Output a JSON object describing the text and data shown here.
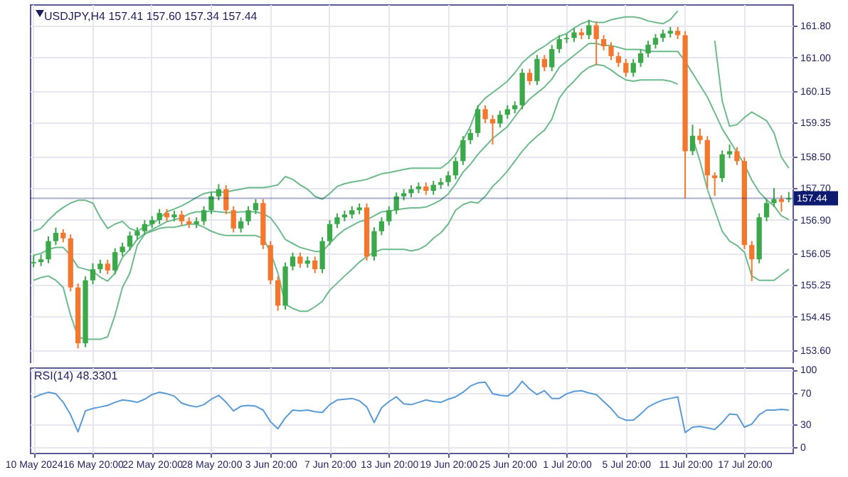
{
  "chart_data": [
    {
      "type": "candlestick",
      "title": "USDJPY,H4  157.41 157.60 157.34 157.44",
      "ohlc": [
        [
          155.8,
          156.0,
          155.7,
          155.83
        ],
        [
          155.83,
          156.02,
          155.73,
          155.9
        ],
        [
          155.9,
          156.48,
          155.8,
          156.36
        ],
        [
          156.36,
          156.7,
          156.26,
          156.57
        ],
        [
          156.57,
          156.66,
          156.33,
          156.43
        ],
        [
          156.43,
          156.53,
          155.09,
          155.19
        ],
        [
          155.19,
          155.29,
          153.65,
          153.78
        ],
        [
          153.78,
          155.47,
          153.68,
          155.37
        ],
        [
          155.37,
          155.8,
          155.27,
          155.65
        ],
        [
          155.65,
          155.89,
          155.55,
          155.79
        ],
        [
          155.79,
          155.89,
          155.52,
          155.62
        ],
        [
          155.62,
          156.18,
          155.52,
          156.08
        ],
        [
          156.08,
          156.32,
          155.98,
          156.22
        ],
        [
          156.22,
          156.6,
          156.12,
          156.5
        ],
        [
          156.5,
          156.71,
          156.4,
          156.61
        ],
        [
          156.61,
          156.89,
          156.51,
          156.79
        ],
        [
          156.79,
          156.99,
          156.69,
          156.89
        ],
        [
          156.89,
          157.17,
          156.79,
          157.07
        ],
        [
          157.07,
          157.17,
          156.86,
          156.96
        ],
        [
          156.96,
          157.13,
          156.86,
          157.03
        ],
        [
          157.03,
          157.13,
          156.76,
          156.86
        ],
        [
          156.86,
          156.96,
          156.69,
          156.79
        ],
        [
          156.79,
          156.96,
          156.69,
          156.86
        ],
        [
          156.86,
          157.24,
          156.76,
          157.14
        ],
        [
          157.14,
          157.59,
          157.04,
          157.49
        ],
        [
          157.49,
          157.8,
          157.39,
          157.67
        ],
        [
          157.67,
          157.77,
          157.04,
          157.14
        ],
        [
          157.14,
          157.24,
          156.58,
          156.68
        ],
        [
          156.68,
          156.96,
          156.58,
          156.86
        ],
        [
          156.86,
          157.24,
          156.76,
          157.14
        ],
        [
          157.14,
          157.42,
          157.04,
          157.32
        ],
        [
          157.32,
          157.42,
          156.16,
          156.26
        ],
        [
          156.26,
          156.36,
          155.27,
          155.37
        ],
        [
          155.37,
          155.47,
          154.6,
          154.73
        ],
        [
          154.73,
          155.82,
          154.63,
          155.72
        ],
        [
          155.72,
          156.07,
          155.62,
          155.97
        ],
        [
          155.97,
          156.07,
          155.69,
          155.79
        ],
        [
          155.79,
          155.97,
          155.69,
          155.87
        ],
        [
          155.87,
          155.97,
          155.55,
          155.65
        ],
        [
          155.65,
          156.46,
          155.55,
          156.36
        ],
        [
          156.36,
          156.89,
          156.26,
          156.79
        ],
        [
          156.79,
          157.06,
          156.69,
          156.96
        ],
        [
          156.96,
          157.13,
          156.86,
          157.03
        ],
        [
          157.03,
          157.24,
          156.93,
          157.14
        ],
        [
          157.14,
          157.31,
          157.04,
          157.21
        ],
        [
          157.21,
          157.31,
          155.87,
          155.97
        ],
        [
          155.97,
          156.71,
          155.87,
          156.61
        ],
        [
          156.61,
          156.96,
          156.51,
          156.86
        ],
        [
          156.86,
          157.24,
          156.76,
          157.14
        ],
        [
          157.14,
          157.59,
          157.04,
          157.49
        ],
        [
          157.49,
          157.67,
          157.39,
          157.57
        ],
        [
          157.57,
          157.77,
          157.47,
          157.67
        ],
        [
          157.67,
          157.84,
          157.57,
          157.74
        ],
        [
          157.74,
          157.84,
          157.53,
          157.63
        ],
        [
          157.63,
          157.88,
          157.53,
          157.78
        ],
        [
          157.78,
          157.95,
          157.68,
          157.85
        ],
        [
          157.85,
          158.12,
          157.75,
          158.02
        ],
        [
          158.02,
          158.48,
          157.92,
          158.38
        ],
        [
          158.38,
          159.01,
          158.28,
          158.91
        ],
        [
          158.91,
          159.19,
          158.81,
          159.09
        ],
        [
          159.09,
          159.79,
          158.99,
          159.69
        ],
        [
          159.69,
          159.79,
          159.34,
          159.44
        ],
        [
          159.44,
          159.54,
          158.8,
          159.33
        ],
        [
          159.33,
          159.65,
          159.23,
          159.55
        ],
        [
          159.55,
          159.79,
          159.45,
          159.69
        ],
        [
          159.69,
          159.89,
          159.59,
          159.79
        ],
        [
          159.79,
          160.71,
          159.69,
          160.61
        ],
        [
          160.61,
          160.71,
          160.3,
          160.4
        ],
        [
          160.4,
          161.06,
          160.3,
          160.96
        ],
        [
          160.96,
          161.06,
          160.65,
          160.75
        ],
        [
          160.75,
          161.31,
          160.65,
          161.21
        ],
        [
          161.21,
          161.56,
          161.11,
          161.46
        ],
        [
          161.46,
          161.59,
          161.36,
          161.49
        ],
        [
          161.49,
          161.73,
          161.39,
          161.63
        ],
        [
          161.63,
          161.73,
          161.46,
          161.56
        ],
        [
          161.56,
          161.95,
          161.46,
          161.81
        ],
        [
          161.81,
          161.91,
          160.8,
          161.46
        ],
        [
          161.46,
          161.56,
          161.18,
          161.28
        ],
        [
          161.28,
          161.38,
          160.93,
          161.03
        ],
        [
          161.03,
          161.13,
          160.76,
          160.86
        ],
        [
          160.86,
          160.96,
          160.51,
          160.61
        ],
        [
          160.61,
          160.96,
          160.51,
          160.86
        ],
        [
          160.86,
          161.2,
          160.76,
          161.1
        ],
        [
          161.1,
          161.42,
          161.0,
          161.32
        ],
        [
          161.32,
          161.59,
          161.22,
          161.49
        ],
        [
          161.49,
          161.7,
          161.39,
          161.6
        ],
        [
          161.6,
          161.77,
          161.5,
          161.67
        ],
        [
          161.67,
          161.77,
          161.46,
          161.56
        ],
        [
          161.56,
          161.66,
          157.45,
          158.63
        ],
        [
          158.63,
          159.3,
          158.53,
          159.02
        ],
        [
          159.02,
          159.2,
          158.81,
          158.91
        ],
        [
          158.91,
          159.01,
          157.7,
          158.02
        ],
        [
          158.02,
          158.1,
          157.5,
          157.95
        ],
        [
          157.95,
          158.65,
          157.85,
          158.55
        ],
        [
          158.55,
          158.8,
          158.45,
          158.63
        ],
        [
          158.63,
          158.73,
          158.28,
          158.38
        ],
        [
          158.38,
          158.48,
          156.16,
          156.26
        ],
        [
          156.26,
          156.36,
          155.35,
          155.9
        ],
        [
          155.9,
          157.06,
          155.8,
          156.96
        ],
        [
          156.96,
          157.42,
          156.86,
          157.32
        ],
        [
          157.32,
          157.7,
          157.22,
          157.42
        ],
        [
          157.42,
          157.52,
          157.1,
          157.35
        ],
        [
          157.41,
          157.6,
          157.34,
          157.44
        ]
      ],
      "colors": [
        "#3ba84a",
        "#3ba84a",
        "#3ba84a",
        "#3ba84a",
        "#f4772e",
        "#f4772e",
        "#f4772e",
        "#3ba84a",
        "#3ba84a",
        "#3ba84a",
        "#f4772e",
        "#3ba84a",
        "#3ba84a",
        "#3ba84a",
        "#3ba84a",
        "#3ba84a",
        "#3ba84a",
        "#3ba84a",
        "#f4772e",
        "#3ba84a",
        "#f4772e",
        "#f4772e",
        "#3ba84a",
        "#3ba84a",
        "#3ba84a",
        "#3ba84a",
        "#f4772e",
        "#f4772e",
        "#3ba84a",
        "#3ba84a",
        "#3ba84a",
        "#f4772e",
        "#f4772e",
        "#f4772e",
        "#3ba84a",
        "#3ba84a",
        "#f4772e",
        "#3ba84a",
        "#f4772e",
        "#3ba84a",
        "#3ba84a",
        "#3ba84a",
        "#3ba84a",
        "#3ba84a",
        "#3ba84a",
        "#f4772e",
        "#3ba84a",
        "#3ba84a",
        "#3ba84a",
        "#3ba84a",
        "#3ba84a",
        "#3ba84a",
        "#3ba84a",
        "#f4772e",
        "#3ba84a",
        "#3ba84a",
        "#3ba84a",
        "#3ba84a",
        "#3ba84a",
        "#3ba84a",
        "#3ba84a",
        "#f4772e",
        "#f4772e",
        "#3ba84a",
        "#3ba84a",
        "#3ba84a",
        "#3ba84a",
        "#f4772e",
        "#3ba84a",
        "#f4772e",
        "#3ba84a",
        "#3ba84a",
        "#3ba84a",
        "#3ba84a",
        "#f4772e",
        "#3ba84a",
        "#f4772e",
        "#f4772e",
        "#f4772e",
        "#f4772e",
        "#f4772e",
        "#3ba84a",
        "#3ba84a",
        "#3ba84a",
        "#3ba84a",
        "#3ba84a",
        "#3ba84a",
        "#f4772e",
        "#f4772e",
        "#3ba84a",
        "#f4772e",
        "#f4772e",
        "#f4772e",
        "#3ba84a",
        "#3ba84a",
        "#f4772e",
        "#f4772e",
        "#f4772e",
        "#3ba84a",
        "#3ba84a",
        "#3ba84a",
        "#f4772e",
        "#3ba84a"
      ],
      "series": [
        {
          "type": "line",
          "color": "#6dbb8c",
          "values": [
            156.61,
            156.68,
            156.89,
            157.07,
            157.21,
            157.32,
            157.39,
            157.39,
            157.32,
            156.96,
            156.68,
            156.79,
            156.86,
            156.68,
            156.61,
            156.72,
            156.79,
            156.93,
            157.1,
            157.17,
            157.25,
            157.35,
            157.46,
            157.56,
            157.6,
            157.6,
            157.6,
            157.64,
            157.67,
            157.71,
            157.71,
            157.71,
            157.74,
            157.78,
            157.99,
            157.92,
            157.78,
            157.67,
            157.49,
            157.42,
            157.56,
            157.74,
            157.81,
            157.85,
            157.88,
            157.92,
            157.99,
            158.06,
            158.09,
            158.13,
            158.17,
            158.2,
            158.2,
            158.2,
            158.2,
            158.2,
            158.34,
            158.55,
            158.91,
            159.26,
            159.76,
            159.97,
            160.11,
            160.25,
            160.4,
            160.61,
            160.86,
            161.03,
            161.17,
            161.28,
            161.42,
            161.53,
            161.6,
            161.74,
            161.85,
            161.92,
            161.88,
            161.88,
            161.95,
            161.99,
            162.02,
            162.02,
            161.99,
            161.92,
            161.88,
            161.85,
            161.95,
            162.17,
            null,
            null,
            null,
            null,
            161.42,
            159.9,
            159.26,
            159.3,
            159.48,
            159.62,
            159.51,
            159.4,
            159.09,
            158.48,
            158.2
          ]
        },
        {
          "type": "line",
          "color": "#6dbb8c",
          "values": [
            156.0,
            156.05,
            156.15,
            156.2,
            156.2,
            156.0,
            155.7,
            155.65,
            155.6,
            155.45,
            155.35,
            155.55,
            155.95,
            156.15,
            156.4,
            156.55,
            156.65,
            156.75,
            156.85,
            156.9,
            156.95,
            157.05,
            157.1,
            157.1,
            157.12,
            157.1,
            157.08,
            157.08,
            157.1,
            157.1,
            157.1,
            157.05,
            156.95,
            156.7,
            156.4,
            156.3,
            156.2,
            156.15,
            156.1,
            156.1,
            156.3,
            156.5,
            156.65,
            156.75,
            156.85,
            156.9,
            157.0,
            157.1,
            157.12,
            157.15,
            157.18,
            157.2,
            157.2,
            157.22,
            157.3,
            157.4,
            157.55,
            157.8,
            158.1,
            158.3,
            158.55,
            158.75,
            158.95,
            159.1,
            159.25,
            159.5,
            159.75,
            159.95,
            160.1,
            160.25,
            160.45,
            160.75,
            160.9,
            161.05,
            161.2,
            161.35,
            161.35,
            161.3,
            161.3,
            161.25,
            161.2,
            161.2,
            161.2,
            161.15,
            161.15,
            161.15,
            161.15,
            161.15,
            160.9,
            160.6,
            160.3,
            160.0,
            159.6,
            159.2,
            158.9,
            158.6,
            158.3,
            157.9,
            157.6,
            157.4,
            157.25,
            157.0,
            156.9
          ]
        },
        {
          "type": "line",
          "color": "#6dbb8c",
          "values": [
            155.37,
            155.44,
            155.48,
            155.37,
            155.19,
            154.49,
            153.94,
            153.88,
            153.88,
            153.88,
            153.94,
            154.49,
            155.19,
            155.55,
            156.25,
            156.54,
            156.61,
            156.68,
            156.71,
            156.71,
            156.75,
            156.79,
            156.79,
            156.71,
            156.61,
            156.54,
            156.5,
            156.5,
            156.5,
            156.5,
            156.5,
            156.43,
            156.08,
            155.55,
            154.77,
            154.66,
            154.59,
            154.59,
            154.7,
            154.84,
            155.12,
            155.3,
            155.48,
            155.65,
            155.83,
            155.97,
            156.08,
            156.15,
            156.15,
            156.15,
            156.15,
            156.11,
            156.15,
            156.25,
            156.43,
            156.57,
            156.79,
            157.14,
            157.28,
            157.35,
            157.32,
            157.49,
            157.74,
            157.92,
            158.13,
            158.38,
            158.63,
            158.84,
            159.01,
            159.16,
            159.44,
            159.97,
            160.22,
            160.4,
            160.61,
            160.75,
            160.82,
            160.79,
            160.68,
            160.54,
            160.43,
            160.4,
            160.43,
            160.43,
            160.43,
            160.43,
            160.4,
            160.32,
            null,
            158.98,
            158.38,
            157.67,
            157.14,
            156.61,
            156.36,
            156.25,
            156.08,
            155.48,
            155.37,
            155.37,
            155.37,
            155.51,
            155.65
          ]
        }
      ],
      "ylim": [
        153.28,
        162.34
      ],
      "yticks": [
        {
          "value": 153.6,
          "label": "153.60"
        },
        {
          "value": 154.45,
          "label": "154.45"
        },
        {
          "value": 155.25,
          "label": "155.25"
        },
        {
          "value": 156.05,
          "label": "156.05"
        },
        {
          "value": 156.9,
          "label": "156.90"
        },
        {
          "value": 157.7,
          "label": "157.70"
        },
        {
          "value": 158.5,
          "label": "158.50"
        },
        {
          "value": 159.35,
          "label": "159.35"
        },
        {
          "value": 160.15,
          "label": "160.15"
        },
        {
          "value": 161.0,
          "label": "161.00"
        },
        {
          "value": 161.8,
          "label": "161.80"
        }
      ],
      "ref_lines": [
        {
          "axis": "y",
          "value": 157.44,
          "label": "157.44",
          "color": "#0c1a70"
        }
      ],
      "grid": true,
      "tick_labels": "y"
    },
    {
      "type": "line",
      "title": "RSI(14) 48.3301",
      "categories": [
        "10 May 2024",
        null,
        null,
        null,
        null,
        null,
        null,
        null,
        "16 May 20:00",
        null,
        null,
        null,
        null,
        null,
        null,
        null,
        "22 May 20:00",
        null,
        null,
        null,
        null,
        null,
        null,
        null,
        "28 May 20:00",
        null,
        null,
        null,
        null,
        null,
        null,
        null,
        "3 Jun 20:00",
        null,
        null,
        null,
        null,
        null,
        null,
        null,
        "7 Jun 20:00",
        null,
        null,
        null,
        null,
        null,
        null,
        null,
        "13 Jun 20:00",
        null,
        null,
        null,
        null,
        null,
        null,
        null,
        "19 Jun 20:00",
        null,
        null,
        null,
        null,
        null,
        null,
        null,
        "25 Jun 20:00",
        null,
        null,
        null,
        null,
        null,
        null,
        null,
        "1 Jul 20:00",
        null,
        null,
        null,
        null,
        null,
        null,
        null,
        "5 Jul 20:00",
        null,
        null,
        null,
        null,
        null,
        null,
        null,
        "11 Jul 20:00",
        null,
        null,
        null,
        null,
        null,
        null,
        null,
        "17 Jul 20:00",
        null,
        null,
        null,
        null,
        null,
        null
      ],
      "series": [
        {
          "color": "#5b9bd5",
          "values": [
            64,
            68,
            71,
            69,
            58,
            42,
            20,
            47,
            50,
            52,
            54,
            58,
            61,
            60,
            58,
            62,
            68,
            71,
            69,
            66,
            57,
            54,
            52,
            55,
            62,
            67,
            58,
            47,
            53,
            54,
            53,
            48,
            33,
            24,
            38,
            48,
            47,
            48,
            46,
            45,
            55,
            61,
            62,
            63,
            60,
            52,
            32,
            51,
            59,
            65,
            56,
            55,
            58,
            61,
            59,
            58,
            62,
            65,
            71,
            79,
            83,
            84,
            69,
            67,
            66,
            73,
            85,
            75,
            68,
            73,
            63,
            63,
            69,
            72,
            73,
            70,
            68,
            59,
            50,
            39,
            35,
            35,
            43,
            52,
            57,
            61,
            63,
            65,
            19,
            26,
            27,
            25,
            23,
            32,
            43,
            42,
            26,
            30,
            42,
            48,
            48,
            49,
            48
          ]
        }
      ],
      "ylim": [
        -7,
        103
      ],
      "yticks": [
        0,
        30,
        70,
        100
      ],
      "grid": true
    }
  ]
}
